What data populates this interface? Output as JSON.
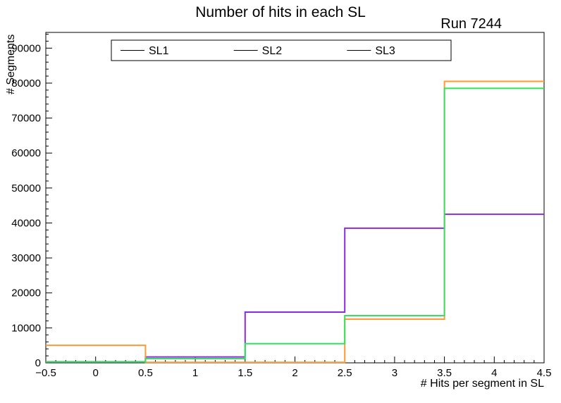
{
  "title": "Number of hits in each SL",
  "run_label": "Run 7244",
  "chart_data": {
    "type": "step-histogram",
    "title": "Number of hits in each SL",
    "xlabel": "# Hits per segment in SL",
    "ylabel": "# Segments",
    "xlim": [
      -0.5,
      4.5
    ],
    "ylim": [
      0,
      94500
    ],
    "x_ticks": [
      {
        "v": -0.5,
        "label": "−0.5"
      },
      {
        "v": 0,
        "label": "0"
      },
      {
        "v": 0.5,
        "label": "0.5"
      },
      {
        "v": 1,
        "label": "1"
      },
      {
        "v": 1.5,
        "label": "1.5"
      },
      {
        "v": 2,
        "label": "2"
      },
      {
        "v": 2.5,
        "label": "2.5"
      },
      {
        "v": 3,
        "label": "3"
      },
      {
        "v": 3.5,
        "label": "3.5"
      },
      {
        "v": 4,
        "label": "4"
      },
      {
        "v": 4.5,
        "label": "4.5"
      }
    ],
    "y_ticks": [
      {
        "v": 0,
        "label": "0"
      },
      {
        "v": 10000,
        "label": "10000"
      },
      {
        "v": 20000,
        "label": "20000"
      },
      {
        "v": 30000,
        "label": "30000"
      },
      {
        "v": 40000,
        "label": "40000"
      },
      {
        "v": 50000,
        "label": "50000"
      },
      {
        "v": 60000,
        "label": "60000"
      },
      {
        "v": 70000,
        "label": "70000"
      },
      {
        "v": 80000,
        "label": "80000"
      },
      {
        "v": 90000,
        "label": "90000"
      }
    ],
    "x_minor_step": 0.1,
    "y_minor_step": 2000,
    "bin_edges": [
      -0.5,
      0.5,
      1.5,
      2.5,
      3.5,
      4.5
    ],
    "series": [
      {
        "name": "SL1",
        "color": "#8a2be2",
        "values": [
          300,
          1700,
          14500,
          38500,
          42500
        ]
      },
      {
        "name": "SL2",
        "color": "#ff9933",
        "values": [
          5000,
          150,
          150,
          12500,
          80500
        ]
      },
      {
        "name": "SL3",
        "color": "#34e05c",
        "values": [
          250,
          1200,
          5500,
          13500,
          78500
        ]
      }
    ],
    "legend": {
      "position": "top-inside",
      "columns": 3,
      "entries": [
        "SL1",
        "SL2",
        "SL3"
      ]
    }
  }
}
